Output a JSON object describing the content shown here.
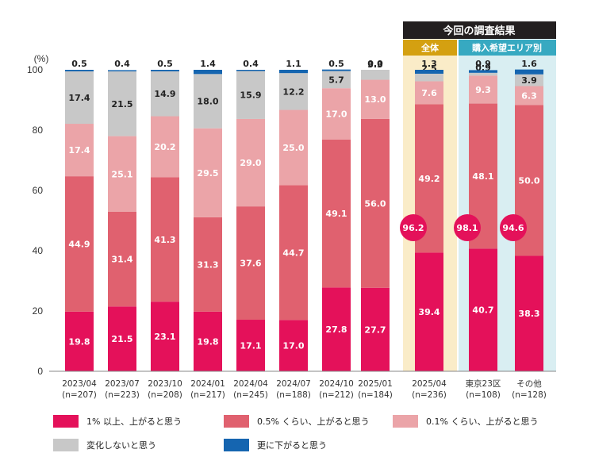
{
  "chart_data": {
    "type": "bar",
    "stacked": true,
    "y_unit": "(%)",
    "ylim": [
      0,
      100
    ],
    "yticks": [
      0,
      20,
      40,
      60,
      80,
      100
    ],
    "header": "今回の調査結果",
    "subheaders": [
      "全体",
      "購入希望エリア別"
    ],
    "categories": [
      {
        "label": "2023/04",
        "n": "(n=207)"
      },
      {
        "label": "2023/07",
        "n": "(n=223)"
      },
      {
        "label": "2023/10",
        "n": "(n=208)"
      },
      {
        "label": "2024/01",
        "n": "(n=217)"
      },
      {
        "label": "2024/04",
        "n": "(n=245)"
      },
      {
        "label": "2024/07",
        "n": "(n=188)"
      },
      {
        "label": "2024/10",
        "n": "(n=212)"
      },
      {
        "label": "2025/01",
        "n": "(n=184)"
      },
      {
        "label": "2025/04",
        "n": "(n=236)"
      },
      {
        "label": "東京23区",
        "n": "(n=108)"
      },
      {
        "label": "その他",
        "n": "(n=128)"
      }
    ],
    "series": [
      {
        "name": "1% 以上、上がると思う",
        "color": "#e4115a",
        "values": [
          19.8,
          21.5,
          23.1,
          19.8,
          17.1,
          17.0,
          27.8,
          27.7,
          39.4,
          40.7,
          38.3
        ]
      },
      {
        "name": "0.5% くらい、上がると思う",
        "color": "#e0616f",
        "values": [
          44.9,
          31.4,
          41.3,
          31.3,
          37.6,
          44.7,
          49.1,
          56.0,
          49.2,
          48.1,
          50.0
        ]
      },
      {
        "name": "0.1% くらい、上がると思う",
        "color": "#eba4a8",
        "values": [
          17.4,
          25.1,
          20.2,
          29.5,
          29.0,
          25.0,
          17.0,
          13.0,
          7.6,
          9.3,
          6.3
        ]
      },
      {
        "name": "変化しないと思う",
        "color": "#c8c8c8",
        "values": [
          17.4,
          21.5,
          14.9,
          18.0,
          15.9,
          12.2,
          5.7,
          3.3,
          2.5,
          0.9,
          3.9
        ]
      },
      {
        "name": "更に下がると思う",
        "color": "#1565b0",
        "values": [
          0.5,
          0.4,
          0.5,
          1.4,
          0.4,
          1.1,
          0.5,
          0.0,
          1.3,
          0.9,
          1.6
        ]
      }
    ],
    "totals": [
      {
        "category": "2025/04",
        "value": "96.2"
      },
      {
        "category": "東京23区",
        "value": "98.1"
      },
      {
        "category": "その他",
        "value": "94.6"
      }
    ],
    "colors": {
      "header_bg": "#231f20",
      "overall_sub_bg": "#d4a011",
      "area_sub_bg": "#37a9c1",
      "overall_panel_bg": "#faecc8",
      "area_panel_bg": "#d9eef2",
      "total_badge": "#e4115a"
    }
  }
}
